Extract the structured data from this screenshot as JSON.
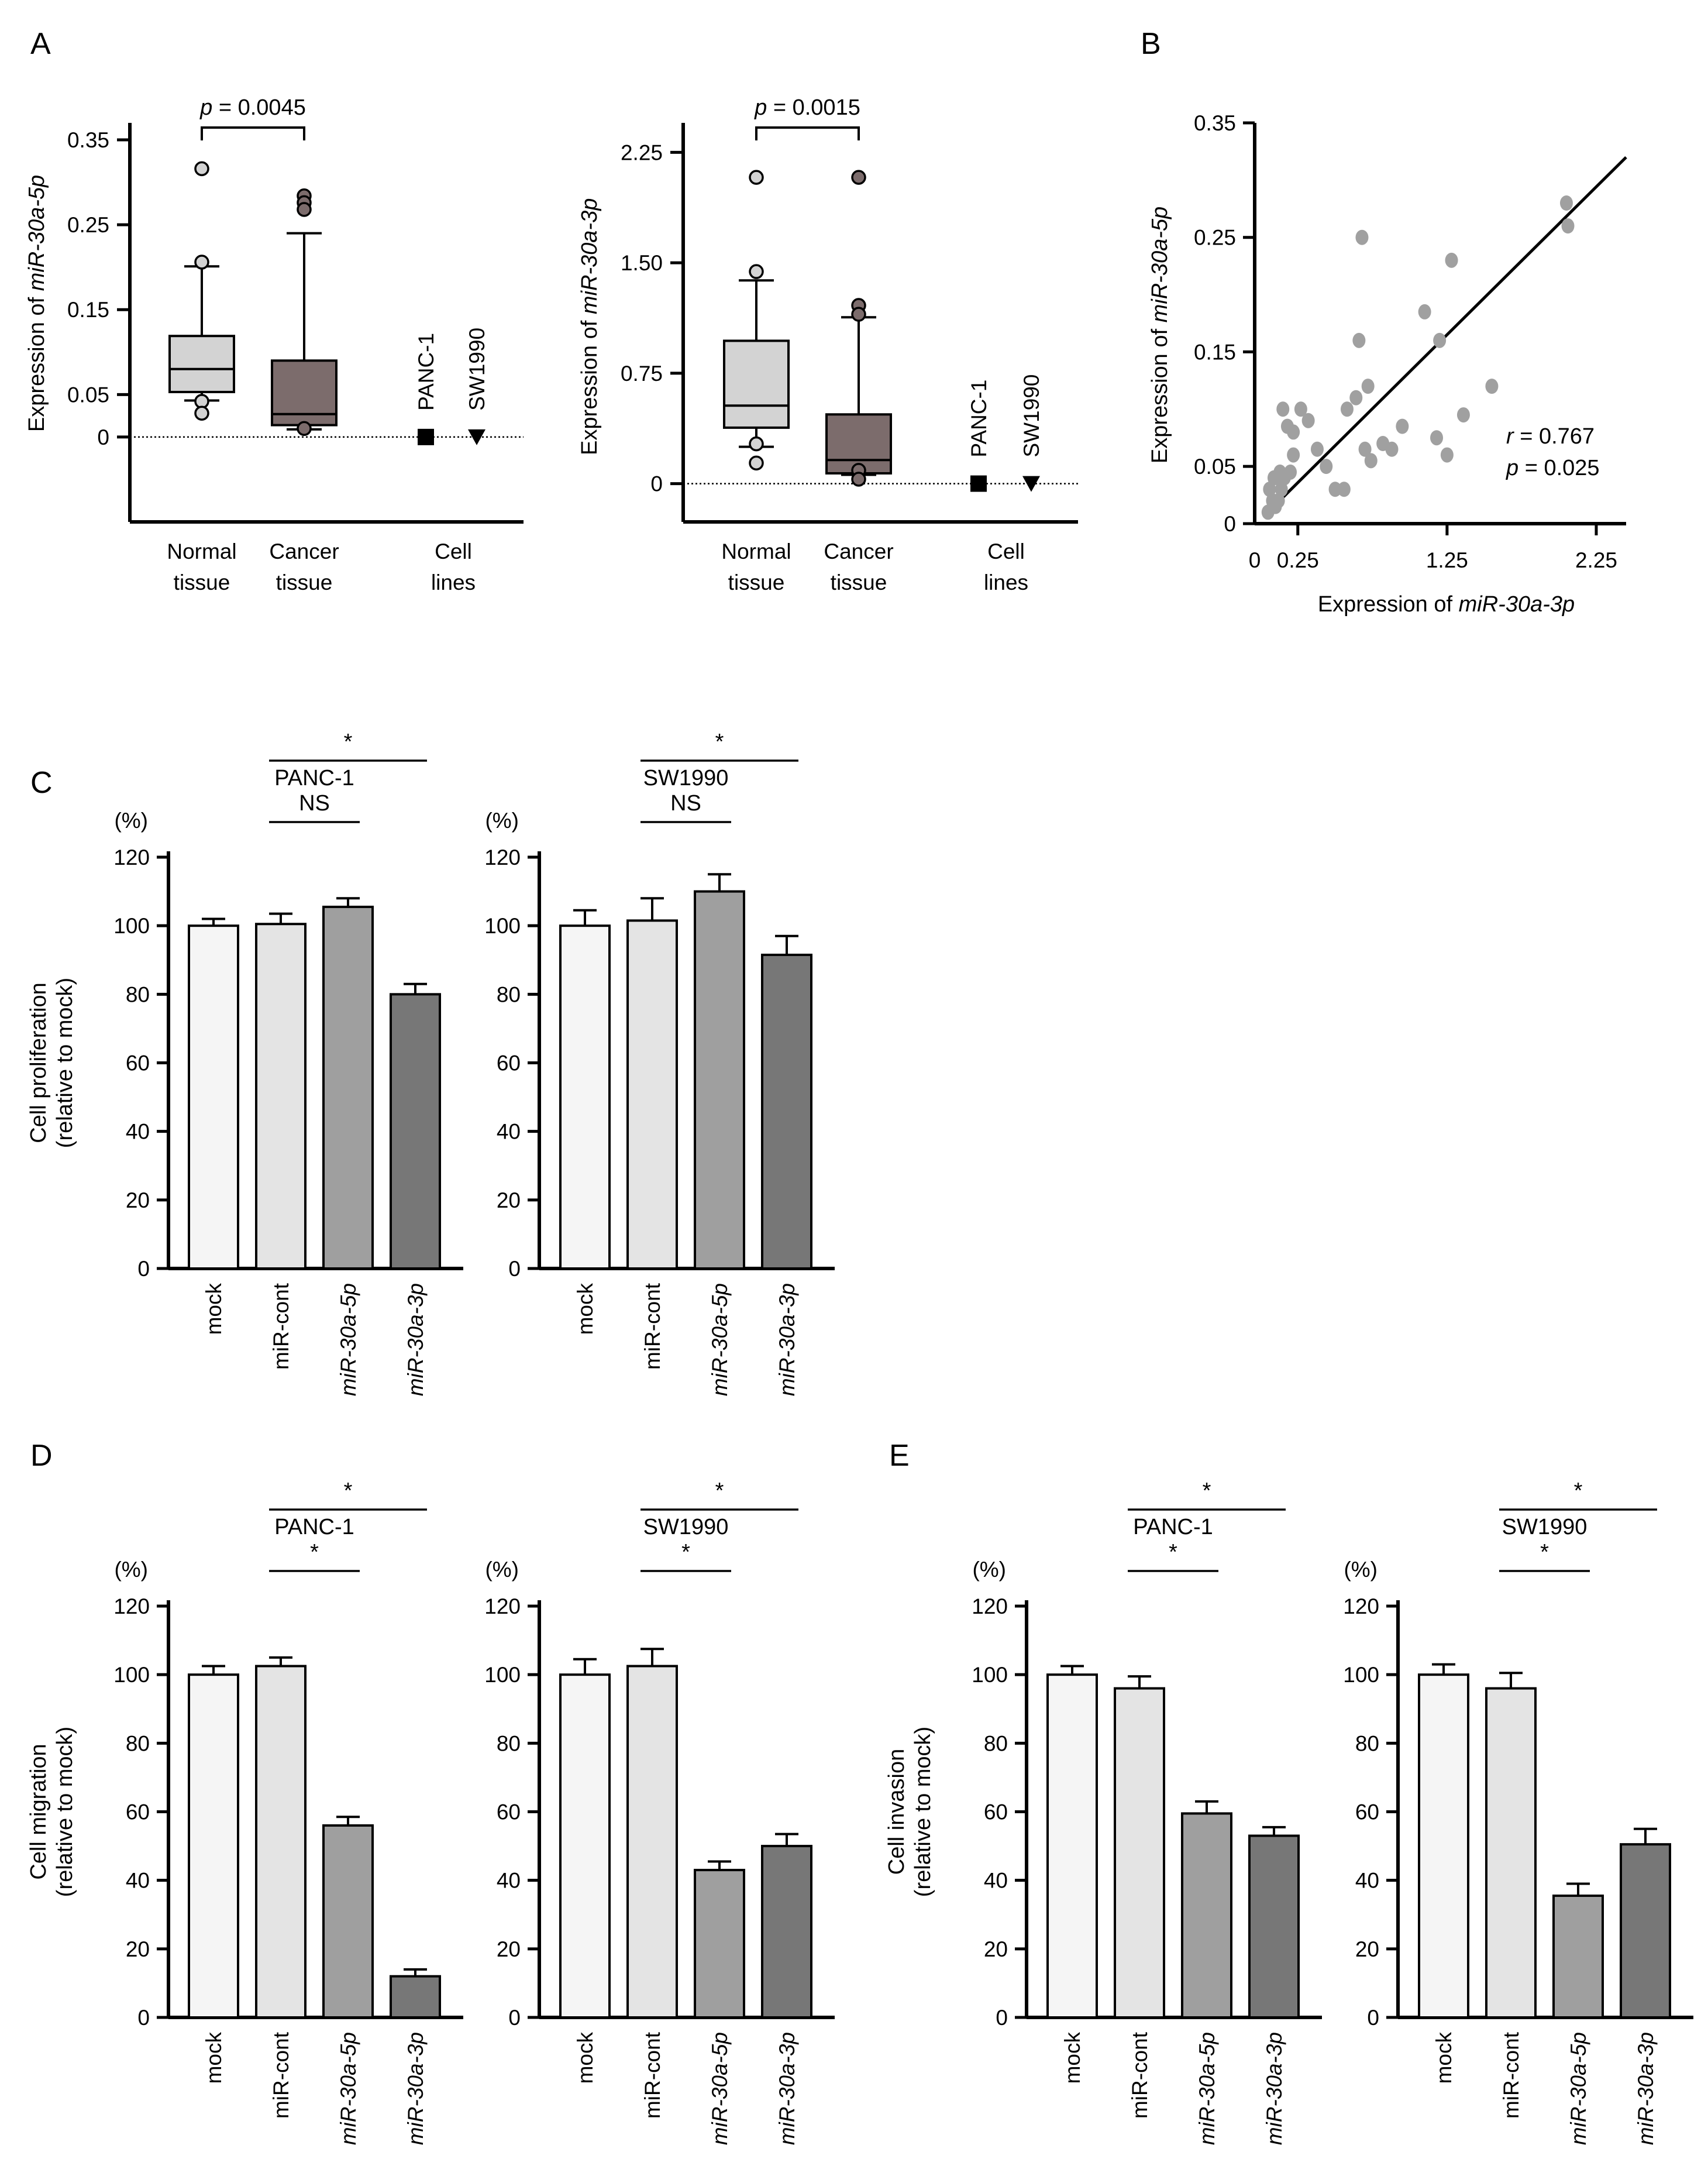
{
  "panels": {
    "a": "A",
    "b": "B",
    "c": "C",
    "d": "D",
    "e": "E"
  },
  "units": {
    "percent": "(%)"
  },
  "common": {
    "bar_categories": [
      "mock",
      "miR-cont",
      "miR-30a-5p",
      "miR-30a-3p"
    ],
    "bar_colors": [
      "#f5f5f5",
      "#e4e4e4",
      "#9f9f9f",
      "#777777"
    ],
    "ns": "NS",
    "star": "*",
    "box_colors": {
      "normal": "#d3d3d3",
      "cancer": "#7c6c6c"
    }
  },
  "chart_data": [
    {
      "type": "box",
      "panel": "A",
      "ylabel_prefix": "Expression of ",
      "ylabel_italic": "miR-30a-5p",
      "ylim": [
        -0.1,
        0.37
      ],
      "yticks": [
        0,
        0.05,
        0.15,
        0.25,
        0.35
      ],
      "ytick_labels": [
        "0",
        "0.05",
        "0.15",
        "0.25",
        "0.35"
      ],
      "groups": [
        {
          "label_line1": "Normal",
          "label_line2": "tissue",
          "min": 0.043,
          "q1": 0.053,
          "median": 0.08,
          "q3": 0.119,
          "max": 0.201,
          "outliers": [
            0.316,
            0.206,
            0.042,
            0.028
          ]
        },
        {
          "label_line1": "Cancer",
          "label_line2": "tissue",
          "min": 0.009,
          "q1": 0.014,
          "median": 0.027,
          "q3": 0.09,
          "max": 0.24,
          "outliers": [
            0.284,
            0.276,
            0.268,
            0.01
          ]
        }
      ],
      "cell_lines": {
        "label_line1": "Cell",
        "label_line2": "lines",
        "names": [
          "PANC-1",
          "SW1990"
        ],
        "values": [
          0,
          0
        ]
      },
      "p_text": "= 0.0045"
    },
    {
      "type": "box",
      "panel": "A",
      "ylabel_prefix": "Expression of ",
      "ylabel_italic": "miR-30a-3p",
      "ylim": [
        -0.26,
        2.45
      ],
      "yticks": [
        0,
        0.75,
        1.5,
        2.25
      ],
      "ytick_labels": [
        "0",
        "0.75",
        "1.50",
        "2.25"
      ],
      "groups": [
        {
          "label_line1": "Normal",
          "label_line2": "tissue",
          "min": 0.25,
          "q1": 0.38,
          "median": 0.53,
          "q3": 0.97,
          "max": 1.38,
          "outliers": [
            2.08,
            1.44,
            0.27,
            0.14
          ]
        },
        {
          "label_line1": "Cancer",
          "label_line2": "tissue",
          "min": 0.06,
          "q1": 0.07,
          "median": 0.16,
          "q3": 0.47,
          "max": 1.13,
          "outliers": [
            2.08,
            1.21,
            1.15,
            0.09,
            0.03
          ]
        }
      ],
      "cell_lines": {
        "label_line1": "Cell",
        "label_line2": "lines",
        "names": [
          "PANC-1",
          "SW1990"
        ],
        "values": [
          0,
          0
        ]
      },
      "p_text": "= 0.0015"
    },
    {
      "type": "scatter",
      "panel": "B",
      "xlabel_prefix": "Expression of ",
      "xlabel_italic": "miR-30a-3p",
      "ylabel_prefix": "Expression of ",
      "ylabel_italic": "miR-30a-5p",
      "xlim": [
        0,
        2.45
      ],
      "ylim": [
        0,
        0.35
      ],
      "xticks": [
        0,
        0.25,
        1.25,
        2.25
      ],
      "xtick_labels": [
        "0",
        "0.25",
        "1.25",
        "2.25"
      ],
      "yticks": [
        0,
        0.05,
        0.15,
        0.25,
        0.35
      ],
      "ytick_labels": [
        "0",
        "0.05",
        "0.15",
        "0.25",
        "0.35"
      ],
      "point_color": "#a0a0a0",
      "points": [
        [
          0.05,
          0.01
        ],
        [
          0.08,
          0.02
        ],
        [
          0.1,
          0.015
        ],
        [
          0.12,
          0.02
        ],
        [
          0.06,
          0.03
        ],
        [
          0.09,
          0.04
        ],
        [
          0.14,
          0.03
        ],
        [
          0.16,
          0.04
        ],
        [
          0.13,
          0.045
        ],
        [
          0.2,
          0.045
        ],
        [
          0.22,
          0.06
        ],
        [
          0.15,
          0.1
        ],
        [
          0.27,
          0.1
        ],
        [
          0.18,
          0.085
        ],
        [
          0.22,
          0.08
        ],
        [
          0.32,
          0.09
        ],
        [
          0.44,
          0.05
        ],
        [
          0.38,
          0.065
        ],
        [
          0.5,
          0.03
        ],
        [
          0.56,
          0.03
        ],
        [
          0.58,
          0.1
        ],
        [
          0.64,
          0.11
        ],
        [
          0.66,
          0.16
        ],
        [
          0.68,
          0.25
        ],
        [
          0.72,
          0.12
        ],
        [
          0.7,
          0.065
        ],
        [
          0.74,
          0.055
        ],
        [
          0.82,
          0.07
        ],
        [
          0.88,
          0.065
        ],
        [
          0.95,
          0.085
        ],
        [
          1.1,
          0.185
        ],
        [
          1.2,
          0.16
        ],
        [
          1.18,
          0.075
        ],
        [
          1.25,
          0.06
        ],
        [
          1.28,
          0.23
        ],
        [
          1.36,
          0.095
        ],
        [
          1.55,
          0.12
        ],
        [
          2.05,
          0.28
        ],
        [
          2.06,
          0.26
        ]
      ],
      "fit_line": {
        "x0": 0.05,
        "y0": 0.01,
        "x1": 2.45,
        "y1": 0.32
      },
      "r_label": "r",
      "r_text": " = 0.767",
      "p_label": "p",
      "p_text": " = 0.025"
    },
    {
      "type": "bar",
      "panel": "C",
      "title": "PANC-1",
      "ylabel1": "Cell proliferation",
      "ylabel2": "(relative to mock)",
      "ylim": [
        0,
        120
      ],
      "values": [
        100,
        100.5,
        105.5,
        80
      ],
      "errors": [
        2,
        3,
        2.5,
        3
      ],
      "sig": [
        {
          "from": 1,
          "to": 2,
          "text": "NS",
          "level": 0
        },
        {
          "from": 1,
          "to": 3,
          "text": "*",
          "level": 1
        }
      ]
    },
    {
      "type": "bar",
      "panel": "C",
      "title": "SW1990",
      "ylim": [
        0,
        120
      ],
      "values": [
        100,
        101.5,
        110,
        91.5
      ],
      "errors": [
        4.5,
        6.5,
        5,
        5.5
      ],
      "sig": [
        {
          "from": 1,
          "to": 2,
          "text": "NS",
          "level": 0
        },
        {
          "from": 1,
          "to": 3,
          "text": "*",
          "level": 1
        }
      ]
    },
    {
      "type": "bar",
      "panel": "D",
      "title": "PANC-1",
      "ylabel1": "Cell migration",
      "ylabel2": "(relative to mock)",
      "ylim": [
        0,
        120
      ],
      "values": [
        100,
        102.5,
        56,
        12
      ],
      "errors": [
        2.5,
        2.5,
        2.5,
        2
      ],
      "sig": [
        {
          "from": 1,
          "to": 2,
          "text": "*",
          "level": 0
        },
        {
          "from": 1,
          "to": 3,
          "text": "*",
          "level": 1
        }
      ]
    },
    {
      "type": "bar",
      "panel": "D",
      "title": "SW1990",
      "ylim": [
        0,
        120
      ],
      "values": [
        100,
        102.5,
        43,
        50
      ],
      "errors": [
        4.5,
        5,
        2.5,
        3.5
      ],
      "sig": [
        {
          "from": 1,
          "to": 2,
          "text": "*",
          "level": 0
        },
        {
          "from": 1,
          "to": 3,
          "text": "*",
          "level": 1
        }
      ]
    },
    {
      "type": "bar",
      "panel": "E",
      "title": "PANC-1",
      "ylabel1": "Cell invasion",
      "ylabel2": "(relative to mock)",
      "ylim": [
        0,
        120
      ],
      "values": [
        100,
        96,
        59.5,
        53
      ],
      "errors": [
        2.5,
        3.5,
        3.5,
        2.5
      ],
      "sig": [
        {
          "from": 1,
          "to": 2,
          "text": "*",
          "level": 0
        },
        {
          "from": 1,
          "to": 3,
          "text": "*",
          "level": 1
        }
      ]
    },
    {
      "type": "bar",
      "panel": "E",
      "title": "SW1990",
      "ylim": [
        0,
        120
      ],
      "values": [
        100,
        96,
        35.5,
        50.5
      ],
      "errors": [
        3,
        4.5,
        3.5,
        4.5
      ],
      "sig": [
        {
          "from": 1,
          "to": 2,
          "text": "*",
          "level": 0
        },
        {
          "from": 1,
          "to": 3,
          "text": "*",
          "level": 1
        }
      ]
    }
  ]
}
